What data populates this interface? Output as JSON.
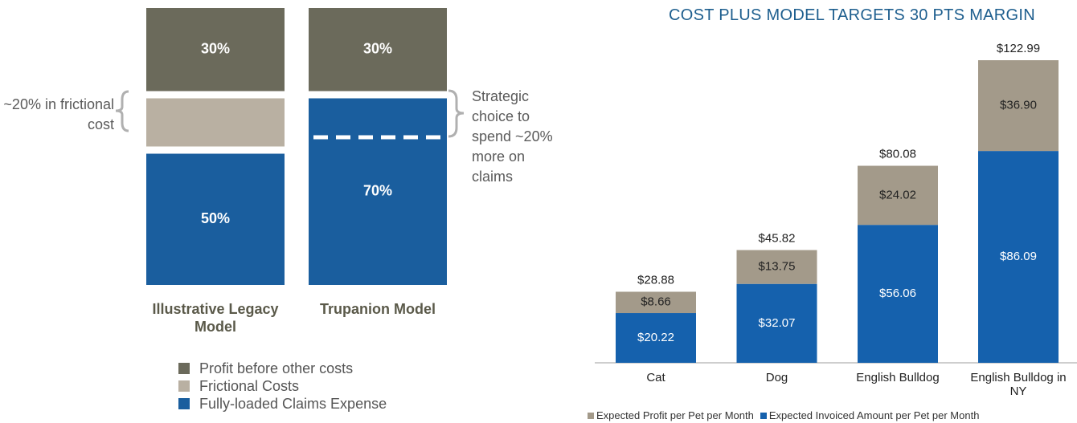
{
  "chart_data": [
    {
      "type": "stacked_bar",
      "categories": [
        "Illustrative Legacy Model",
        "Trupanion Model"
      ],
      "series": [
        {
          "name": "Fully-loaded Claims Expense",
          "color": "#1a5e9e",
          "values": [
            50,
            70
          ],
          "value_labels": [
            "50%",
            "70%"
          ]
        },
        {
          "name": "Frictional Costs",
          "color": "#b9b0a2",
          "values": [
            20,
            null
          ]
        },
        {
          "name": "Profit before other costs",
          "color": "#6b6a5b",
          "values": [
            30,
            30
          ],
          "value_labels": [
            "30%",
            "30%"
          ]
        }
      ],
      "annotations": [
        "~20% in frictional cost",
        "Strategic choice to spend ~20% more on claims"
      ],
      "legend": "bottom"
    },
    {
      "type": "stacked_bar",
      "title": "COST PLUS MODEL TARGETS 30 PTS MARGIN",
      "categories": [
        "Cat",
        "Dog",
        "English Bulldog",
        "English Bulldog in NY"
      ],
      "series": [
        {
          "name": "Expected Invoiced Amount per Pet per Month",
          "color": "#1561ad",
          "values": [
            20.22,
            32.07,
            56.06,
            86.09
          ],
          "value_labels": [
            "$20.22",
            "$32.07",
            "$56.06",
            "$86.09"
          ]
        },
        {
          "name": "Expected Profit per Pet per Month",
          "color": "#a39a8a",
          "values": [
            8.66,
            13.75,
            24.02,
            36.9
          ],
          "value_labels": [
            "$8.66",
            "$13.75",
            "$24.02",
            "$36.90"
          ]
        }
      ],
      "totals": [
        28.88,
        45.82,
        80.08,
        122.99
      ],
      "total_labels": [
        "$28.88",
        "$45.82",
        "$80.08",
        "$122.99"
      ],
      "legend": "bottom"
    }
  ]
}
